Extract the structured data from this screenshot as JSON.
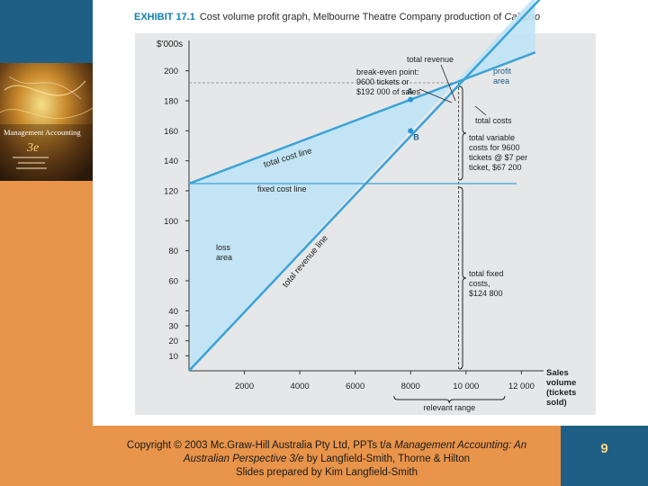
{
  "slide": {
    "exhibit_label": "EXHIBIT 17.1",
    "exhibit_title": "Cost volume profit graph, Melbourne Theatre Company production of",
    "exhibit_title_italic": "Calypso",
    "footer": {
      "line1": "Copyright © 2003 Mc.Graw-Hill Australia Pty Ltd, PPTs t/a ",
      "line1_italic": "Management Accounting: An",
      "line2_italic": "Australian Perspective 3/e",
      "line2": " by Langfield-Smith, Thorne & Hilton",
      "line3": "Slides prepared by Kim Langfield-Smith"
    },
    "page_number": "9",
    "cover": {
      "title": "Management Accounting",
      "edition": "3e"
    },
    "colors": {
      "orange": "#e8944a",
      "navy": "#1f5f86",
      "chart_bg": "#e6e7e8",
      "line": "#3aa3d6",
      "fill": "#bfe3f5"
    }
  },
  "chart_data": {
    "type": "line",
    "title": "Cost volume profit graph, Melbourne Theatre Company production of Calypso",
    "ylabel": "$'000s",
    "xlabel": "Sales volume (tickets sold)",
    "xlabel_lines": [
      "Sales",
      "volume",
      "(tickets",
      "sold)"
    ],
    "xlim": [
      0,
      12800
    ],
    "ylim": [
      0,
      225
    ],
    "x_ticks": [
      2000,
      4000,
      6000,
      8000,
      10000,
      12000
    ],
    "x_tick_labels": [
      "2000",
      "4000",
      "6000",
      "8000",
      "10 000",
      "12 000"
    ],
    "y_ticks": [
      10,
      20,
      30,
      40,
      60,
      80,
      100,
      120,
      140,
      160,
      180,
      200
    ],
    "y_tick_labels": [
      "10",
      "20",
      "30",
      "40",
      "60",
      "80",
      "100",
      "120",
      "140",
      "160",
      "180",
      "200"
    ],
    "series": [
      {
        "name": "total revenue line",
        "x": [
          0,
          12500
        ],
        "y": [
          0,
          250
        ]
      },
      {
        "name": "total cost line",
        "x": [
          0,
          12500
        ],
        "y": [
          124.8,
          212.3
        ]
      },
      {
        "name": "fixed cost line",
        "x": [
          0,
          12800
        ],
        "y": [
          124.8,
          124.8
        ]
      }
    ],
    "break_even": {
      "tickets": 9600,
      "sales": 192
    },
    "points": [
      {
        "label": "A",
        "x": 8000,
        "y": 180.8
      },
      {
        "label": "B",
        "x": 8000,
        "y": 160
      }
    ],
    "relevant_range": [
      7400,
      11400
    ],
    "annotations": {
      "total_revenue": "total revenue",
      "break_even_lines": [
        "break-even point:",
        "9600 tickets or",
        "$192 000 of sales"
      ],
      "profit_area_lines": [
        "profit",
        "area"
      ],
      "total_costs": "total costs",
      "variable_costs_lines": [
        "total variable",
        "costs for 9600",
        "tickets @ $7 per",
        "ticket, $67 200"
      ],
      "fixed_costs_lines": [
        "total fixed",
        "costs,",
        "$124 800"
      ],
      "loss_area_lines": [
        "loss",
        "area"
      ],
      "total_cost_line": "total cost line",
      "fixed_cost_line": "fixed cost line",
      "total_revenue_line": "total revenue line",
      "relevant_range": "relevant range"
    }
  }
}
